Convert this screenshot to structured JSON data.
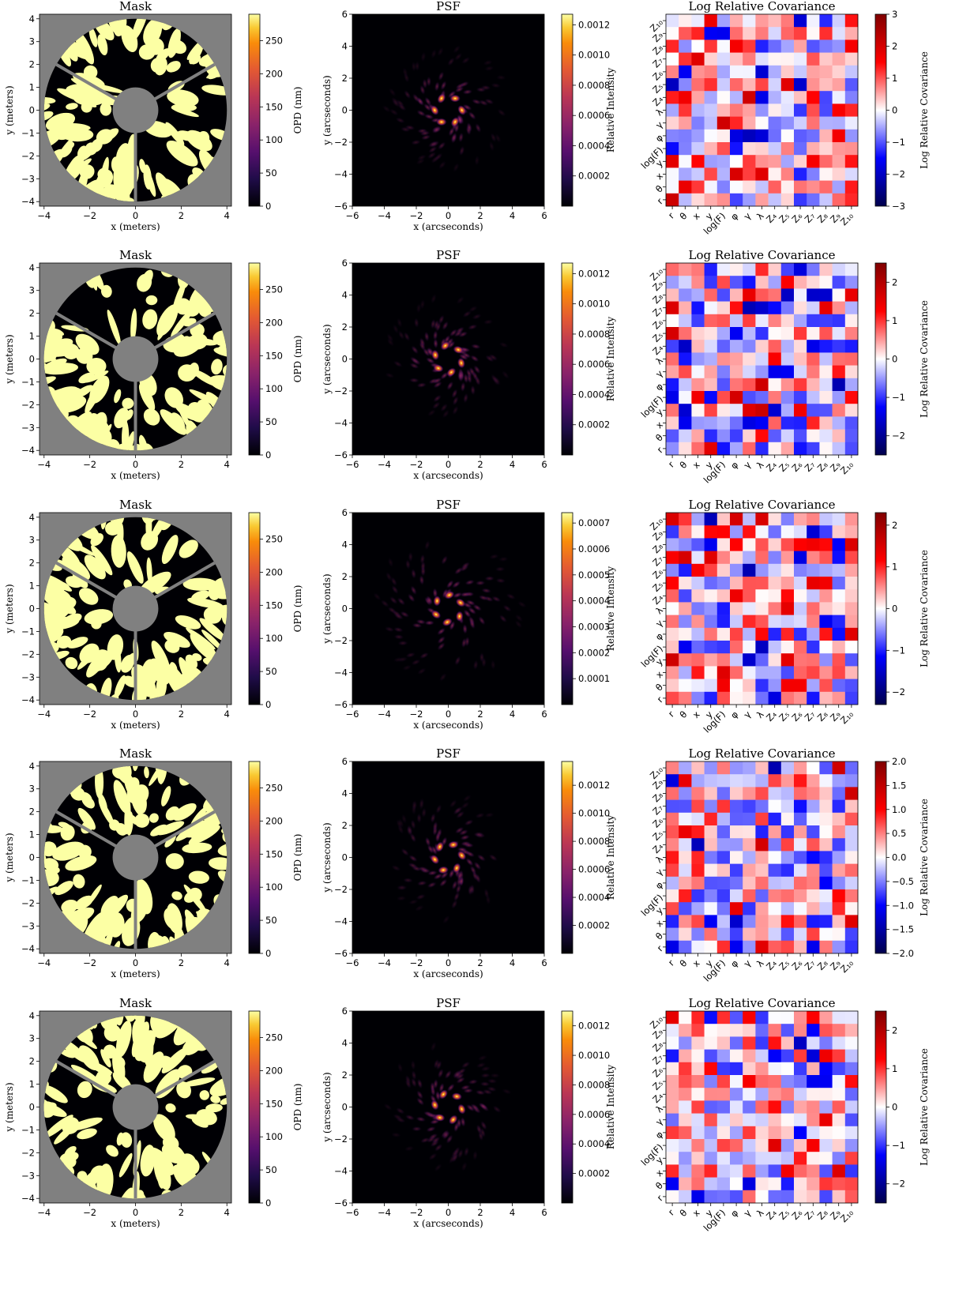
{
  "chart_data": [
    {
      "row": 1,
      "mask": {
        "type": "heatmap",
        "title": "Mask",
        "xlabel": "x (meters)",
        "ylabel": "y (meters)",
        "xlim": [
          -4.2,
          4.2
        ],
        "ylim": [
          -4.2,
          4.2
        ],
        "ticks": [
          -4,
          -3,
          -2,
          -1,
          0,
          1,
          2,
          3,
          4
        ],
        "xticks": [
          -4,
          -2,
          0,
          2,
          4
        ],
        "colorbar": {
          "label": "OPD (nm)",
          "range": [
            0,
            290
          ],
          "ticks": [
            0,
            50,
            100,
            150,
            200,
            250
          ]
        },
        "spiders_deg": [
          30,
          150,
          270
        ],
        "outer_radius_m": 4.0,
        "inner_radius_m": 1.0
      },
      "psf": {
        "type": "heatmap",
        "title": "PSF",
        "xlabel": "x (arcseconds)",
        "ylabel": "y (arcseconds)",
        "xlim": [
          -6,
          6
        ],
        "ylim": [
          -6,
          6
        ],
        "ticks": [
          -6,
          -4,
          -2,
          0,
          2,
          4,
          6
        ],
        "colorbar": {
          "label": "Relative Intensity",
          "range": [
            0,
            0.00127
          ],
          "ticks": [
            0.0002,
            0.0004,
            0.0006,
            0.0008,
            0.001,
            0.0012
          ],
          "tick_labels": [
            "0.0002",
            "0.0004",
            "0.0006",
            "0.0008",
            "0.0010",
            "0.0012"
          ]
        }
      },
      "cov": {
        "type": "heatmap",
        "title": "Log Relative Covariance",
        "labels": [
          "r",
          "θ",
          "x",
          "y",
          "log(F)",
          "φ",
          "γ",
          "λ",
          "Z₄",
          "Z₅",
          "Z₆",
          "Z₇",
          "Z₈",
          "Z₉",
          "Z₁₀"
        ],
        "colorbar": {
          "label": "Log Relative Covariance",
          "range": [
            -3,
            3
          ],
          "ticks": [
            -3,
            -2,
            -1,
            0,
            1,
            2,
            3
          ],
          "tick_labels": [
            "−3",
            "−2",
            "−1",
            "0",
            "1",
            "2",
            "3"
          ]
        }
      }
    },
    {
      "row": 2,
      "mask": {
        "type": "heatmap",
        "title": "Mask",
        "xlabel": "x (meters)",
        "ylabel": "y (meters)",
        "xlim": [
          -4.2,
          4.2
        ],
        "ylim": [
          -4.2,
          4.2
        ],
        "ticks": [
          -4,
          -3,
          -2,
          -1,
          0,
          1,
          2,
          3,
          4
        ],
        "xticks": [
          -4,
          -2,
          0,
          2,
          4
        ],
        "colorbar": {
          "label": "OPD (nm)",
          "range": [
            0,
            290
          ],
          "ticks": [
            0,
            50,
            100,
            150,
            200,
            250
          ]
        },
        "spiders_deg": [
          30,
          150,
          270
        ],
        "outer_radius_m": 4.0,
        "inner_radius_m": 1.0
      },
      "psf": {
        "type": "heatmap",
        "title": "PSF",
        "xlabel": "x (arcseconds)",
        "ylabel": "y (arcseconds)",
        "xlim": [
          -6,
          6
        ],
        "ylim": [
          -6,
          6
        ],
        "ticks": [
          -6,
          -4,
          -2,
          0,
          2,
          4,
          6
        ],
        "colorbar": {
          "label": "Relative Intensity",
          "range": [
            0,
            0.00127
          ],
          "ticks": [
            0.0002,
            0.0004,
            0.0006,
            0.0008,
            0.001,
            0.0012
          ],
          "tick_labels": [
            "0.0002",
            "0.0004",
            "0.0006",
            "0.0008",
            "0.0010",
            "0.0012"
          ]
        }
      },
      "cov": {
        "type": "heatmap",
        "title": "Log Relative Covariance",
        "labels": [
          "r",
          "θ",
          "x",
          "y",
          "log(F)",
          "φ",
          "γ",
          "λ",
          "Z₄",
          "Z₅",
          "Z₆",
          "Z₇",
          "Z₈",
          "Z₉",
          "Z₁₀"
        ],
        "colorbar": {
          "label": "Log Relative Covariance",
          "range": [
            -2.5,
            2.5
          ],
          "ticks": [
            -2,
            -1,
            0,
            1,
            2
          ],
          "tick_labels": [
            "−2",
            "−1",
            "0",
            "1",
            "2"
          ]
        }
      }
    },
    {
      "row": 3,
      "mask": {
        "type": "heatmap",
        "title": "Mask",
        "xlabel": "x (meters)",
        "ylabel": "y (meters)",
        "xlim": [
          -4.2,
          4.2
        ],
        "ylim": [
          -4.2,
          4.2
        ],
        "ticks": [
          -4,
          -3,
          -2,
          -1,
          0,
          1,
          2,
          3,
          4
        ],
        "xticks": [
          -4,
          -2,
          0,
          2,
          4
        ],
        "colorbar": {
          "label": "OPD (nm)",
          "range": [
            0,
            290
          ],
          "ticks": [
            0,
            50,
            100,
            150,
            200,
            250
          ]
        },
        "spiders_deg": [
          30,
          150,
          270
        ],
        "outer_radius_m": 4.0,
        "inner_radius_m": 1.0
      },
      "psf": {
        "type": "heatmap",
        "title": "PSF",
        "xlabel": "x (arcseconds)",
        "ylabel": "y (arcseconds)",
        "xlim": [
          -6,
          6
        ],
        "ylim": [
          -6,
          6
        ],
        "ticks": [
          -6,
          -4,
          -2,
          0,
          2,
          4,
          6
        ],
        "colorbar": {
          "label": "Relative Intensity",
          "range": [
            0,
            0.00074
          ],
          "ticks": [
            0.0001,
            0.0002,
            0.0003,
            0.0004,
            0.0005,
            0.0006,
            0.0007
          ],
          "tick_labels": [
            "0.0001",
            "0.0002",
            "0.0003",
            "0.0004",
            "0.0005",
            "0.0006",
            "0.0007"
          ]
        }
      },
      "cov": {
        "type": "heatmap",
        "title": "Log Relative Covariance",
        "labels": [
          "r",
          "θ",
          "x",
          "y",
          "log(F)",
          "φ",
          "γ",
          "λ",
          "Z₄",
          "Z₅",
          "Z₆",
          "Z₇",
          "Z₈",
          "Z₉",
          "Z₁₀"
        ],
        "colorbar": {
          "label": "Log Relative Covariance",
          "range": [
            -2.3,
            2.3
          ],
          "ticks": [
            -2,
            -1,
            0,
            1,
            2
          ],
          "tick_labels": [
            "−2",
            "−1",
            "0",
            "1",
            "2"
          ]
        }
      }
    },
    {
      "row": 4,
      "mask": {
        "type": "heatmap",
        "title": "Mask",
        "xlabel": "x (meters)",
        "ylabel": "y (meters)",
        "xlim": [
          -4.2,
          4.2
        ],
        "ylim": [
          -4.2,
          4.2
        ],
        "ticks": [
          -4,
          -3,
          -2,
          -1,
          0,
          1,
          2,
          3,
          4
        ],
        "xticks": [
          -4,
          -2,
          0,
          2,
          4
        ],
        "colorbar": {
          "label": "OPD (nm)",
          "range": [
            0,
            290
          ],
          "ticks": [
            0,
            50,
            100,
            150,
            200,
            250
          ]
        },
        "spiders_deg": [
          30,
          150,
          270
        ],
        "outer_radius_m": 4.0,
        "inner_radius_m": 1.0
      },
      "psf": {
        "type": "heatmap",
        "title": "PSF",
        "xlabel": "x (arcseconds)",
        "ylabel": "y (arcseconds)",
        "xlim": [
          -6,
          6
        ],
        "ylim": [
          -6,
          6
        ],
        "ticks": [
          -6,
          -4,
          -2,
          0,
          2,
          4,
          6
        ],
        "colorbar": {
          "label": "Relative Intensity",
          "range": [
            0,
            0.00137
          ],
          "ticks": [
            0.0002,
            0.0004,
            0.0006,
            0.0008,
            0.001,
            0.0012
          ],
          "tick_labels": [
            "0.0002",
            "0.0004",
            "0.0006",
            "0.0008",
            "0.0010",
            "0.0012"
          ]
        }
      },
      "cov": {
        "type": "heatmap",
        "title": "Log Relative Covariance",
        "labels": [
          "r",
          "θ",
          "x",
          "y",
          "log(F)",
          "φ",
          "γ",
          "λ",
          "Z₄",
          "Z₅",
          "Z₆",
          "Z₇",
          "Z₈",
          "Z₉",
          "Z₁₀"
        ],
        "colorbar": {
          "label": "Log Relative Covariance",
          "range": [
            -2,
            2
          ],
          "ticks": [
            -2,
            -1.5,
            -1,
            -0.5,
            0,
            0.5,
            1,
            1.5,
            2
          ],
          "tick_labels": [
            "−2.0",
            "−1.5",
            "−1.0",
            "−0.5",
            "0.0",
            "0.5",
            "1.0",
            "1.5",
            "2.0"
          ]
        }
      }
    },
    {
      "row": 5,
      "mask": {
        "type": "heatmap",
        "title": "Mask",
        "xlabel": "x (meters)",
        "ylabel": "y (meters)",
        "xlim": [
          -4.2,
          4.2
        ],
        "ylim": [
          -4.2,
          4.2
        ],
        "ticks": [
          -4,
          -3,
          -2,
          -1,
          0,
          1,
          2,
          3,
          4
        ],
        "xticks": [
          -4,
          -2,
          0,
          2,
          4
        ],
        "colorbar": {
          "label": "OPD (nm)",
          "range": [
            0,
            290
          ],
          "ticks": [
            0,
            50,
            100,
            150,
            200,
            250
          ]
        },
        "spiders_deg": [
          30,
          150,
          270
        ],
        "outer_radius_m": 4.0,
        "inner_radius_m": 1.0
      },
      "psf": {
        "type": "heatmap",
        "title": "PSF",
        "xlabel": "x (arcseconds)",
        "ylabel": "y (arcseconds)",
        "xlim": [
          -6,
          6
        ],
        "ylim": [
          -6,
          6
        ],
        "ticks": [
          -6,
          -4,
          -2,
          0,
          2,
          4,
          6
        ],
        "colorbar": {
          "label": "Relative Intensity",
          "range": [
            0,
            0.0013
          ],
          "ticks": [
            0.0002,
            0.0004,
            0.0006,
            0.0008,
            0.001,
            0.0012
          ],
          "tick_labels": [
            "0.0002",
            "0.0004",
            "0.0006",
            "0.0008",
            "0.0010",
            "0.0012"
          ]
        }
      },
      "cov": {
        "type": "heatmap",
        "title": "Log Relative Covariance",
        "labels": [
          "r",
          "θ",
          "x",
          "y",
          "log(F)",
          "φ",
          "γ",
          "λ",
          "Z₄",
          "Z₅",
          "Z₆",
          "Z₇",
          "Z₈",
          "Z₉",
          "Z₁₀"
        ],
        "colorbar": {
          "label": "Log Relative Covariance",
          "range": [
            -2.5,
            2.5
          ],
          "ticks": [
            -2,
            -1,
            0,
            1,
            2
          ],
          "tick_labels": [
            "−2",
            "−1",
            "0",
            "1",
            "2"
          ]
        }
      }
    }
  ],
  "colors": {
    "mask_bright": "#fcffa4",
    "mask_dark": "#000004",
    "mask_background": "#808080",
    "spider": "#808080",
    "cov_positive": "#b40426",
    "cov_negative": "#00008b"
  }
}
